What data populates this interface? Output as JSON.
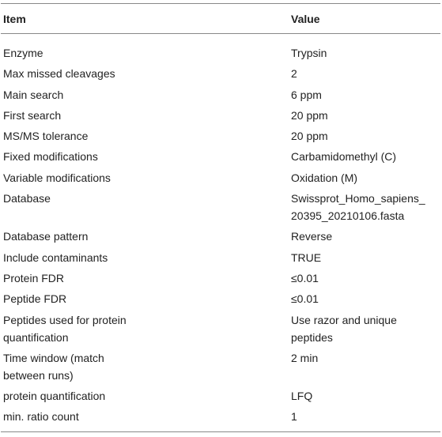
{
  "table": {
    "header": [
      "Item",
      "Value"
    ],
    "rows": [
      [
        "Enzyme",
        "Trypsin"
      ],
      [
        "Max missed cleavages",
        "2"
      ],
      [
        "Main search",
        "6 ppm"
      ],
      [
        "First search",
        "20 ppm"
      ],
      [
        "MS/MS tolerance",
        "20 ppm"
      ],
      [
        "Fixed modifications",
        "Carbamidomethyl (C)"
      ],
      [
        "Variable modifications",
        "Oxidation (M)"
      ],
      [
        "Database",
        "Swissprot_Homo_sapiens_\n20395_20210106.fasta"
      ],
      [
        "Database pattern",
        "Reverse"
      ],
      [
        "Include contaminants",
        "TRUE"
      ],
      [
        "Protein FDR",
        "≤0.01"
      ],
      [
        "Peptide FDR",
        "≤0.01"
      ],
      [
        "Peptides used for protein\nquantification",
        "Use razor and unique\npeptides"
      ],
      [
        "Time window (match\nbetween runs)",
        "2 min"
      ],
      [
        "protein quantification",
        "LFQ"
      ],
      [
        "min. ratio count",
        "1"
      ]
    ]
  }
}
